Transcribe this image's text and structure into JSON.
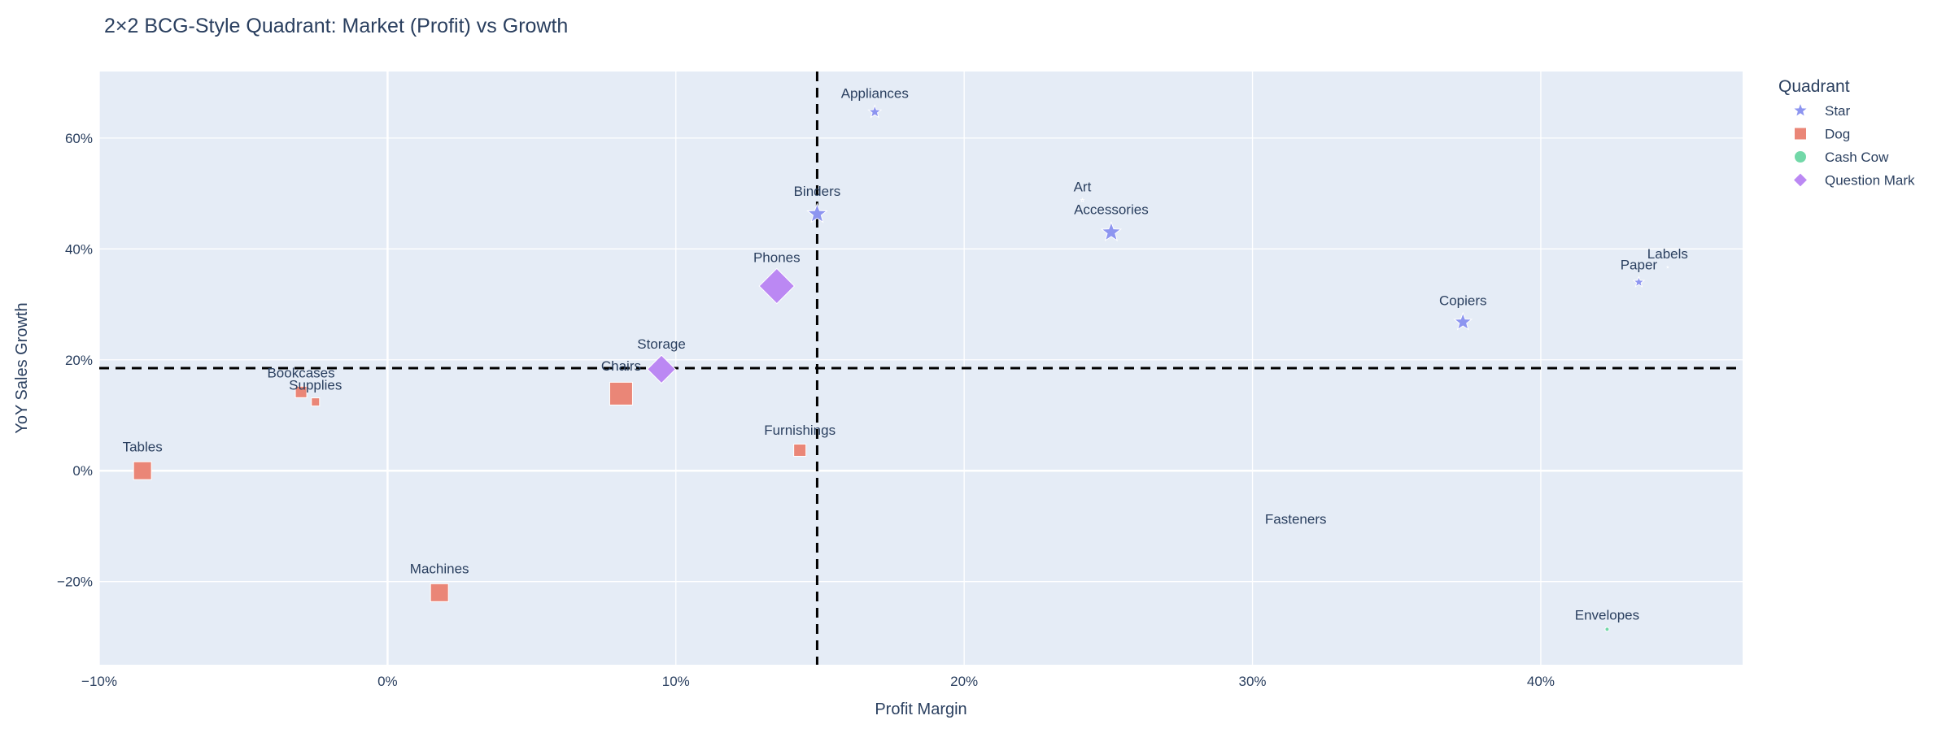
{
  "chart_data": {
    "type": "scatter",
    "title": "2×2 BCG-Style Quadrant: Market (Profit) vs Growth",
    "xlabel": "Profit Margin",
    "ylabel": "YoY Sales Growth",
    "xlim": [
      -0.1,
      0.47
    ],
    "ylim": [
      -0.35,
      0.72
    ],
    "x_ticks": [
      -0.1,
      0.0,
      0.1,
      0.2,
      0.3,
      0.4
    ],
    "x_tick_labels": [
      "−10%",
      "0%",
      "10%",
      "20%",
      "30%",
      "40%"
    ],
    "y_ticks": [
      -0.2,
      0.0,
      0.2,
      0.4,
      0.6
    ],
    "y_tick_labels": [
      "−20%",
      "0%",
      "20%",
      "40%",
      "60%"
    ],
    "grid": true,
    "reference_lines": {
      "x": 0.149,
      "y": 0.185,
      "style": "dashed",
      "color": "#000000"
    },
    "legend": {
      "title": "Quadrant",
      "placement": "right"
    },
    "series": [
      {
        "name": "Star",
        "marker": "star",
        "color": "#8d95f0",
        "points": [
          {
            "label": "Appliances",
            "x": 0.169,
            "y": 0.647,
            "size": 13
          },
          {
            "label": "Binders",
            "x": 0.149,
            "y": 0.463,
            "size": 20
          },
          {
            "label": "Art",
            "x": 0.241,
            "y": 0.488,
            "size": 3
          },
          {
            "label": "Accessories",
            "x": 0.251,
            "y": 0.43,
            "size": 20
          },
          {
            "label": "Paper",
            "x": 0.434,
            "y": 0.34,
            "size": 11
          },
          {
            "label": "Labels",
            "x": 0.444,
            "y": 0.367,
            "size": 1
          },
          {
            "label": "Copiers",
            "x": 0.373,
            "y": 0.268,
            "size": 18
          }
        ]
      },
      {
        "name": "Dog",
        "marker": "square",
        "color": "#ea8677",
        "points": [
          {
            "label": "Bookcases",
            "x": -0.03,
            "y": 0.142,
            "size": 14
          },
          {
            "label": "Supplies",
            "x": -0.025,
            "y": 0.124,
            "size": 10
          },
          {
            "label": "Chairs",
            "x": 0.081,
            "y": 0.139,
            "size": 28
          },
          {
            "label": "Tables",
            "x": -0.085,
            "y": 0.0,
            "size": 22
          },
          {
            "label": "Furnishings",
            "x": 0.143,
            "y": 0.037,
            "size": 15
          },
          {
            "label": "Machines",
            "x": 0.018,
            "y": -0.22,
            "size": 22
          }
        ]
      },
      {
        "name": "Cash Cow",
        "marker": "circle",
        "color": "#72d8a8",
        "points": [
          {
            "label": "Fasteners",
            "x": 0.315,
            "y": -0.112,
            "size": 0
          },
          {
            "label": "Envelopes",
            "x": 0.423,
            "y": -0.286,
            "size": 5
          }
        ]
      },
      {
        "name": "Question Mark",
        "marker": "diamond",
        "color": "#bb88f3",
        "points": [
          {
            "label": "Phones",
            "x": 0.135,
            "y": 0.333,
            "size": 30
          },
          {
            "label": "Storage",
            "x": 0.095,
            "y": 0.183,
            "size": 24
          }
        ]
      }
    ]
  }
}
